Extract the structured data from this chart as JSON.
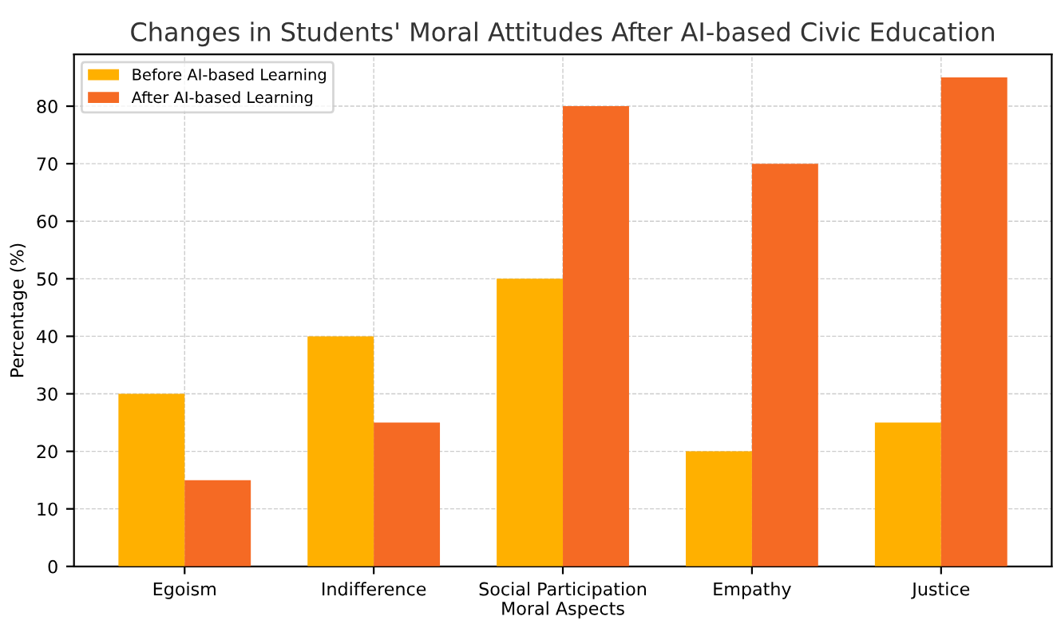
{
  "chart_data": {
    "type": "bar",
    "title": "Changes in Students' Moral Attitudes After AI-based Civic Education",
    "xlabel": "Moral Aspects",
    "ylabel": "Percentage (%)",
    "categories": [
      "Egoism",
      "Indifference",
      "Social Participation",
      "Empathy",
      "Justice"
    ],
    "series": [
      {
        "name": "Before AI-based Learning",
        "color": "#ffb000",
        "values": [
          30,
          40,
          50,
          20,
          25
        ]
      },
      {
        "name": "After AI-based Learning",
        "color": "#f56a24",
        "values": [
          15,
          25,
          80,
          70,
          85
        ]
      }
    ],
    "ylim": [
      0,
      89
    ],
    "yticks": [
      0,
      10,
      20,
      30,
      40,
      50,
      60,
      70,
      80
    ],
    "grid": true,
    "legend": "top left"
  }
}
